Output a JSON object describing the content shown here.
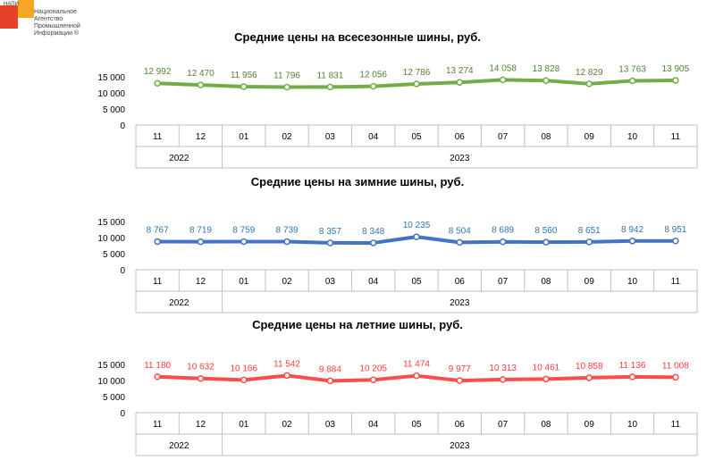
{
  "logo": {
    "abbr": "НАПИ",
    "lines": [
      "Национальное",
      "Агентство",
      "Промышленной",
      "Информации ®"
    ]
  },
  "chart_data": [
    {
      "type": "line",
      "title": "Средние цены на всесезонные шины, руб.",
      "categories": [
        "11",
        "12",
        "01",
        "02",
        "03",
        "04",
        "05",
        "06",
        "07",
        "08",
        "09",
        "10",
        "11"
      ],
      "year_groups": [
        {
          "label": "2022",
          "span": 2
        },
        {
          "label": "2023",
          "span": 11
        }
      ],
      "values": [
        12992,
        12470,
        11956,
        11796,
        11831,
        12056,
        12786,
        13274,
        14058,
        13828,
        12829,
        13763,
        13905
      ],
      "value_labels": [
        "12 992",
        "12 470",
        "11 956",
        "11 796",
        "11 831",
        "12 056",
        "12 786",
        "13 274",
        "14 058",
        "13 828",
        "12 829",
        "13 763",
        "13 905"
      ],
      "y_ticks": [
        "0",
        "5 000",
        "10 000",
        "15 000"
      ],
      "ylim": [
        0,
        15000
      ],
      "color": "#70ad47",
      "label_color": "#548235"
    },
    {
      "type": "line",
      "title": "Средние цены на зимние шины, руб.",
      "categories": [
        "11",
        "12",
        "01",
        "02",
        "03",
        "04",
        "05",
        "06",
        "07",
        "08",
        "09",
        "10",
        "11"
      ],
      "year_groups": [
        {
          "label": "2022",
          "span": 2
        },
        {
          "label": "2023",
          "span": 11
        }
      ],
      "values": [
        8767,
        8719,
        8759,
        8739,
        8357,
        8348,
        10235,
        8504,
        8689,
        8560,
        8651,
        8942,
        8951
      ],
      "value_labels": [
        "8 767",
        "8 719",
        "8 759",
        "8 739",
        "8 357",
        "8 348",
        "10 235",
        "8 504",
        "8 689",
        "8 560",
        "8 651",
        "8 942",
        "8 951"
      ],
      "y_ticks": [
        "0",
        "5 000",
        "10 000",
        "15 000"
      ],
      "ylim": [
        0,
        15000
      ],
      "color": "#4472c4",
      "label_color": "#2e75b6"
    },
    {
      "type": "line",
      "title": "Средние цены на летние шины, руб.",
      "categories": [
        "11",
        "12",
        "01",
        "02",
        "03",
        "04",
        "05",
        "06",
        "07",
        "08",
        "09",
        "10",
        "11"
      ],
      "year_groups": [
        {
          "label": "2022",
          "span": 2
        },
        {
          "label": "2023",
          "span": 11
        }
      ],
      "values": [
        11180,
        10632,
        10166,
        11542,
        9884,
        10205,
        11474,
        9977,
        10313,
        10461,
        10858,
        11136,
        11008
      ],
      "value_labels": [
        "11 180",
        "10 632",
        "10 166",
        "11 542",
        "9 884",
        "10 205",
        "11 474",
        "9 977",
        "10 313",
        "10 461",
        "10 858",
        "11 136",
        "11 008"
      ],
      "y_ticks": [
        "0",
        "5 000",
        "10 000",
        "15 000"
      ],
      "ylim": [
        0,
        15000
      ],
      "color": "#ff4b4b",
      "label_color": "#ff3b3b"
    }
  ]
}
